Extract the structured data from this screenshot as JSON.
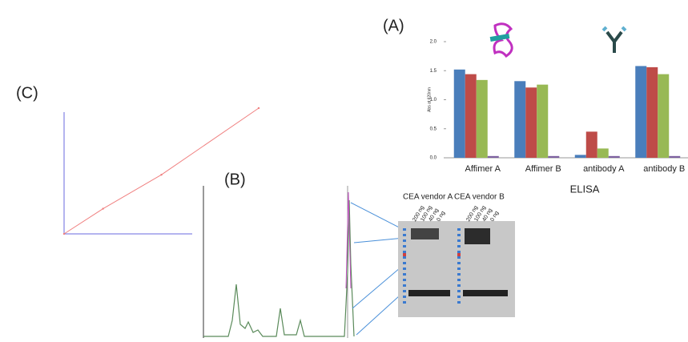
{
  "chart_data": [
    {
      "type": "bar",
      "label": "(A)",
      "x_label": "ELISA",
      "y_label": "Abs at 620nm",
      "categories": [
        "Affimer A",
        "Affimer B",
        "antibody A",
        "antibody B"
      ],
      "series": [
        {
          "color": "#4a7ebb",
          "values": [
            1.52,
            1.32,
            0.05,
            1.58
          ]
        },
        {
          "color": "#be4b48",
          "values": [
            1.44,
            1.21,
            0.45,
            1.56
          ]
        },
        {
          "color": "#98b954",
          "values": [
            1.34,
            1.26,
            0.16,
            1.44
          ]
        },
        {
          "color": "#7d60a0",
          "values": [
            0.03,
            0.03,
            0.03,
            0.03
          ]
        }
      ],
      "ylim": [
        0,
        2.0
      ],
      "yticks": [
        {
          "value": 0,
          "label": "0.0"
        },
        {
          "value": 0.5,
          "label": "0.5"
        },
        {
          "value": 1,
          "label": "1.0"
        },
        {
          "value": 1.5,
          "label": "1.5"
        },
        {
          "value": 2,
          "label": "2.0"
        }
      ]
    },
    {
      "type": "line",
      "label": "(C)",
      "color": "#f08080",
      "x": [
        0,
        20,
        50,
        100
      ],
      "values": [
        0,
        20,
        47,
        100
      ],
      "xlim": [
        0,
        100
      ],
      "ylim": [
        0,
        100
      ]
    }
  ],
  "chromatogram": {
    "label": "(B)"
  },
  "blot": {
    "vendors": [
      "CEA vendor  A",
      "CEA vendor  B"
    ],
    "lanes": [
      "200 ng",
      "100 ng",
      "40 ng",
      "0 ng"
    ]
  }
}
